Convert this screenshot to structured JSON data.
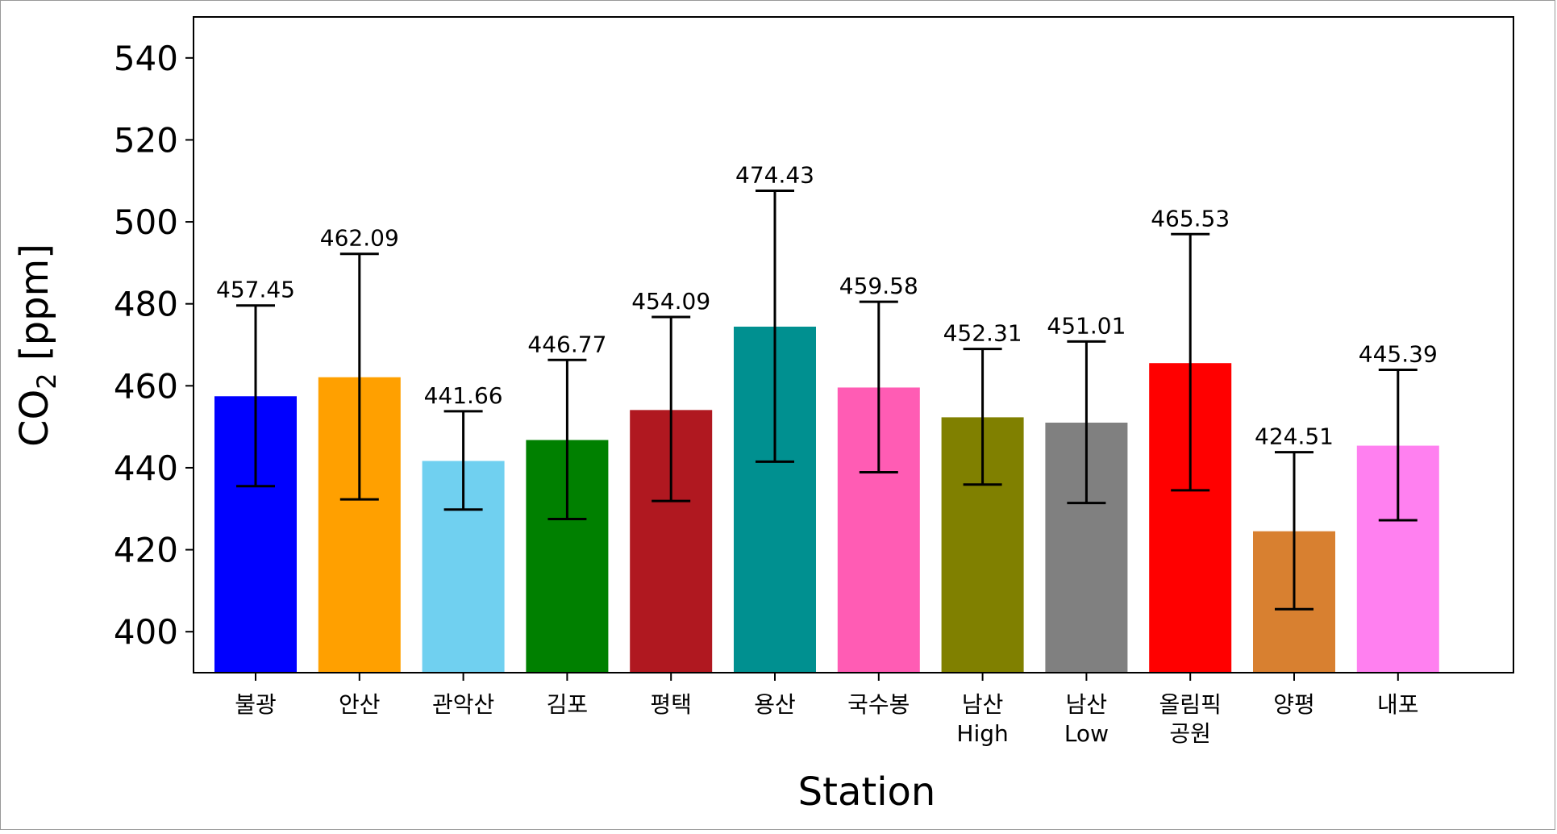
{
  "chart_data": {
    "type": "bar",
    "title": "",
    "xlabel": "Station",
    "ylabel": {
      "main": "CO",
      "sub": "2",
      "unit": " [ppm]"
    },
    "ylim": [
      390,
      550
    ],
    "yticks": [
      400,
      420,
      440,
      460,
      480,
      500,
      520,
      540
    ],
    "grid": false,
    "legend": "none",
    "categories": [
      [
        "불광"
      ],
      [
        "안산"
      ],
      [
        "관악산"
      ],
      [
        "김포"
      ],
      [
        "평택"
      ],
      [
        "용산"
      ],
      [
        "국수봉"
      ],
      [
        "남산",
        "High"
      ],
      [
        "남산",
        "Low"
      ],
      [
        "올림픽",
        "공원"
      ],
      [
        "양평"
      ],
      [
        "내포"
      ]
    ],
    "values": [
      457.45,
      462.09,
      441.66,
      446.77,
      454.09,
      474.43,
      459.58,
      452.31,
      451.01,
      465.53,
      424.51,
      445.39
    ],
    "value_labels": [
      "457.45",
      "462.09",
      "441.66",
      "446.77",
      "454.09",
      "474.43",
      "459.58",
      "452.31",
      "451.01",
      "465.53",
      "424.51",
      "445.39"
    ],
    "error_low": [
      435.5,
      432.3,
      429.8,
      427.5,
      431.9,
      441.5,
      438.9,
      435.9,
      431.4,
      434.5,
      405.5,
      427.2
    ],
    "error_high": [
      479.6,
      492.2,
      453.8,
      466.3,
      476.8,
      507.6,
      480.5,
      469.0,
      470.8,
      497.0,
      443.8,
      463.9
    ],
    "colors": [
      "#0000ff",
      "#ffa000",
      "#70d0f0",
      "#008000",
      "#b01820",
      "#009090",
      "#ff5cb4",
      "#808000",
      "#808080",
      "#ff0000",
      "#d88030",
      "#ff80f0"
    ]
  }
}
